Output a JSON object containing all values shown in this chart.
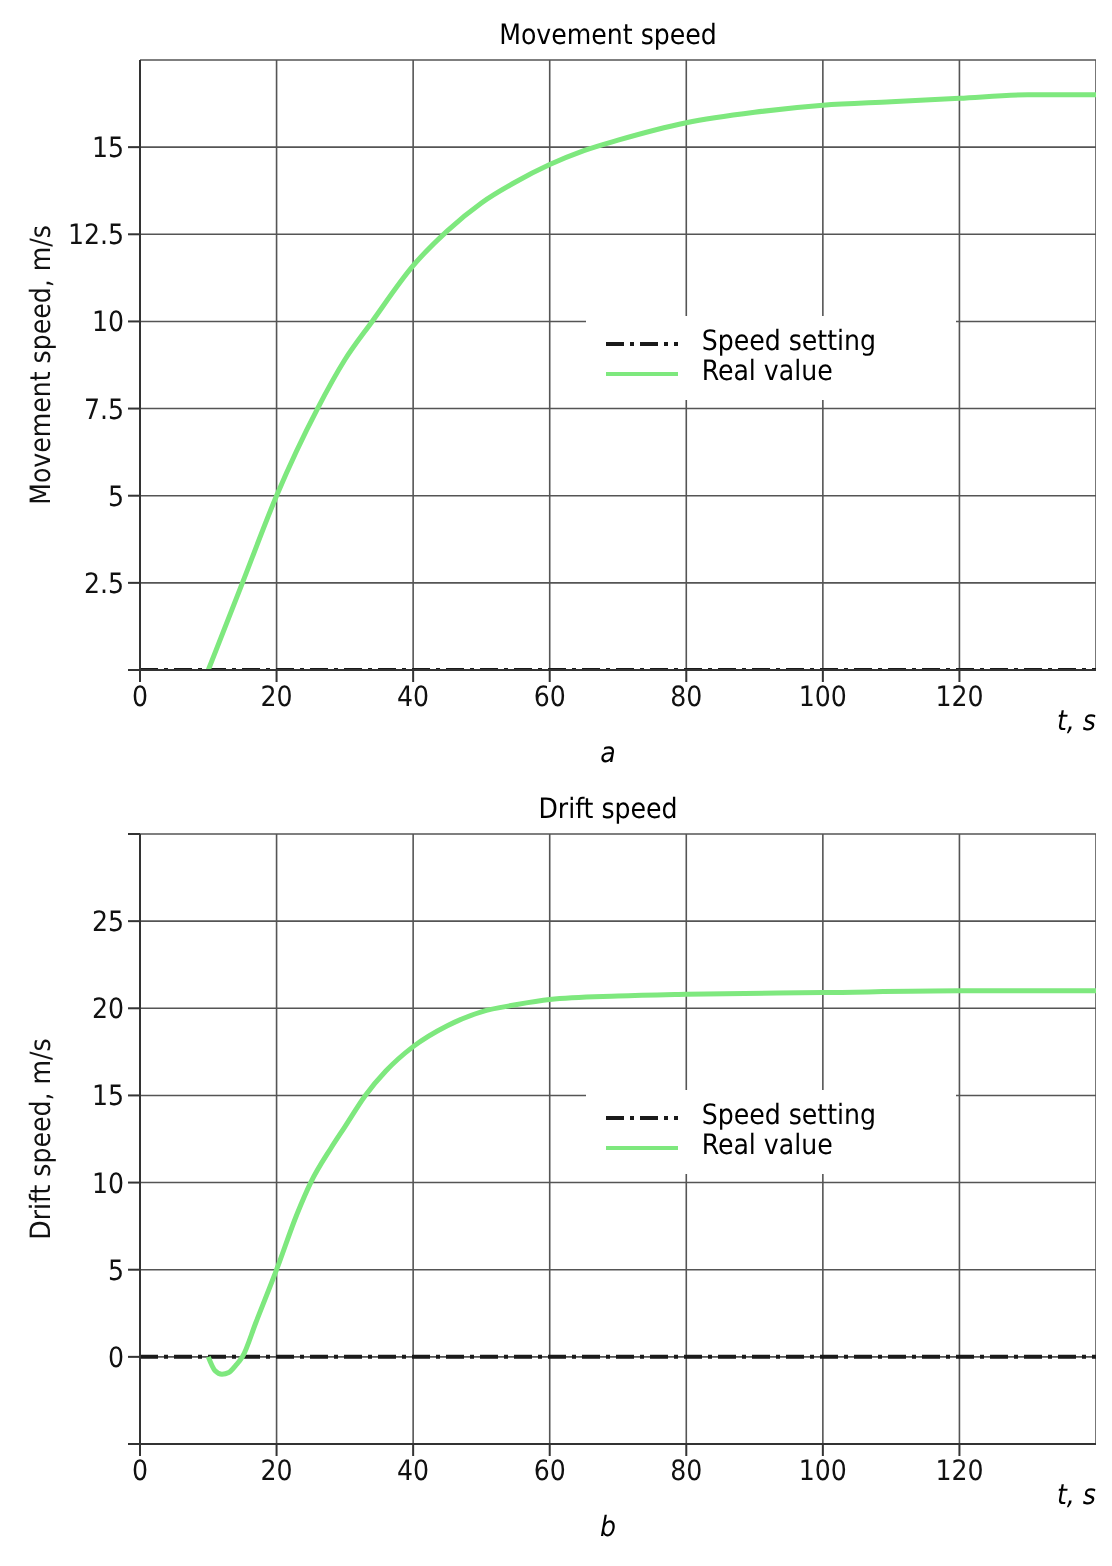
{
  "chart_data": [
    {
      "type": "line",
      "title": "Movement speed",
      "xlabel": "t, s",
      "ylabel": "Movement speed, m/s",
      "annotations": [
        "a"
      ],
      "xlim": [
        0,
        140
      ],
      "xticks": [
        0,
        20,
        40,
        60,
        80,
        100,
        120
      ],
      "ylim": [
        0,
        17.5
      ],
      "yticks": [
        {
          "value": 0,
          "label": null
        },
        2.5,
        5,
        7.5,
        10,
        12.5,
        15
      ],
      "grid": true,
      "legend": "right",
      "series": [
        {
          "name": "Speed setting",
          "color": "#1a1a1a",
          "line_style": "dashed",
          "x": [
            0,
            140
          ],
          "values": [
            0,
            0
          ]
        },
        {
          "name": "Real value",
          "color": "#7ee87e",
          "line_style": "solid",
          "x": [
            10,
            15,
            20,
            26,
            30,
            34,
            40,
            45,
            50,
            55,
            60,
            65,
            70,
            80,
            90,
            100,
            110,
            120,
            130,
            140
          ],
          "values": [
            0,
            2.5,
            5,
            7.5,
            8.9,
            10,
            11.6,
            12.6,
            13.4,
            14,
            14.5,
            14.9,
            15.2,
            15.7,
            16,
            16.2,
            16.3,
            16.4,
            16.5,
            16.5
          ]
        }
      ]
    },
    {
      "type": "line",
      "title": "Drift speed",
      "xlabel": "t, s",
      "ylabel": "Drift speed, m/s",
      "annotations": [
        "b"
      ],
      "xlim": [
        0,
        140
      ],
      "xticks": [
        0,
        20,
        40,
        60,
        80,
        100,
        120
      ],
      "ylim": [
        -5,
        30
      ],
      "yticks": [
        {
          "value": -5,
          "label": null
        },
        0,
        5,
        10,
        15,
        20,
        25,
        {
          "value": 30,
          "label": null
        }
      ],
      "grid": true,
      "legend": "right",
      "series": [
        {
          "name": "Speed setting",
          "color": "#1a1a1a",
          "line_style": "dashed",
          "x": [
            0,
            140
          ],
          "values": [
            0,
            0
          ]
        },
        {
          "name": "Real value",
          "color": "#7ee87e",
          "line_style": "solid",
          "x": [
            10,
            11,
            12,
            13,
            14,
            15,
            17,
            20,
            23,
            25,
            28,
            30,
            33,
            36,
            40,
            45,
            50,
            55,
            60,
            70,
            80,
            100,
            120,
            140
          ],
          "values": [
            0,
            -0.8,
            -1,
            -0.9,
            -0.5,
            0,
            2,
            5,
            8.2,
            10,
            12,
            13.2,
            15,
            16.4,
            17.8,
            19,
            19.8,
            20.2,
            20.5,
            20.7,
            20.8,
            20.9,
            21,
            21
          ]
        }
      ]
    }
  ]
}
